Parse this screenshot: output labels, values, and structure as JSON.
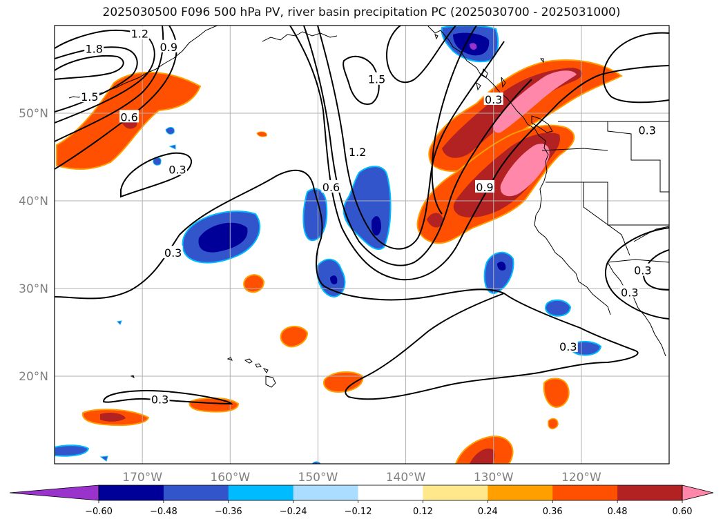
{
  "title": "2025030500 F096 500 hPa PV, river basin precipitation PC (2025030700 - 2025031000)",
  "map": {
    "lon_range": [
      -180,
      -110
    ],
    "lat_range": [
      10,
      60
    ],
    "lon_ticks": [
      {
        "value": -170,
        "label": "170°W"
      },
      {
        "value": -160,
        "label": "160°W"
      },
      {
        "value": -150,
        "label": "150°W"
      },
      {
        "value": -140,
        "label": "140°W"
      },
      {
        "value": -130,
        "label": "130°W"
      },
      {
        "value": -120,
        "label": "120°W"
      }
    ],
    "lat_ticks": [
      {
        "value": 20,
        "label": "20°N"
      },
      {
        "value": 30,
        "label": "30°N"
      },
      {
        "value": 40,
        "label": "40°N"
      },
      {
        "value": 50,
        "label": "50°N"
      }
    ],
    "grid": true
  },
  "contour_labels": [
    {
      "text": "1.8",
      "lon": -175.5,
      "lat": 57.3
    },
    {
      "text": "1.2",
      "lon": -170.3,
      "lat": 59.0
    },
    {
      "text": "0.9",
      "lon": -167.0,
      "lat": 57.5
    },
    {
      "text": "1.5",
      "lon": -176.0,
      "lat": 51.8
    },
    {
      "text": "0.6",
      "lon": -171.5,
      "lat": 49.5
    },
    {
      "text": "0.3",
      "lon": -166.0,
      "lat": 43.5
    },
    {
      "text": "0.3",
      "lon": -166.5,
      "lat": 34.0
    },
    {
      "text": "0.3",
      "lon": -168.0,
      "lat": 17.3
    },
    {
      "text": "1.5",
      "lon": -143.3,
      "lat": 53.8
    },
    {
      "text": "1.2",
      "lon": -145.5,
      "lat": 45.5
    },
    {
      "text": "0.6",
      "lon": -148.5,
      "lat": 41.5
    },
    {
      "text": "0.9",
      "lon": -131.0,
      "lat": 41.5
    },
    {
      "text": "0.3",
      "lon": -130.0,
      "lat": 51.5
    },
    {
      "text": "0.3",
      "lon": -112.5,
      "lat": 48.0
    },
    {
      "text": "0.3",
      "lon": -113.0,
      "lat": 32.0
    },
    {
      "text": "0.3",
      "lon": -114.5,
      "lat": 29.5
    },
    {
      "text": "0.3",
      "lon": -121.5,
      "lat": 23.3
    }
  ],
  "colorbar": {
    "ticks": [
      "−0.60",
      "−0.48",
      "−0.36",
      "−0.24",
      "−0.12",
      "0.12",
      "0.24",
      "0.36",
      "0.48",
      "0.60"
    ],
    "colors": {
      "under": "#9933cc",
      "bins": [
        "#000099",
        "#3355cc",
        "#00bbff",
        "#aaddff",
        "#ffffff",
        "#ffe88c",
        "#ff9f00",
        "#ff4f00",
        "#b22222"
      ],
      "over": "#ff88aa"
    }
  },
  "legend_colors": {
    "land_outline": "#000000",
    "contour_line": "#000000",
    "grid_line": "#b0b0b0"
  }
}
